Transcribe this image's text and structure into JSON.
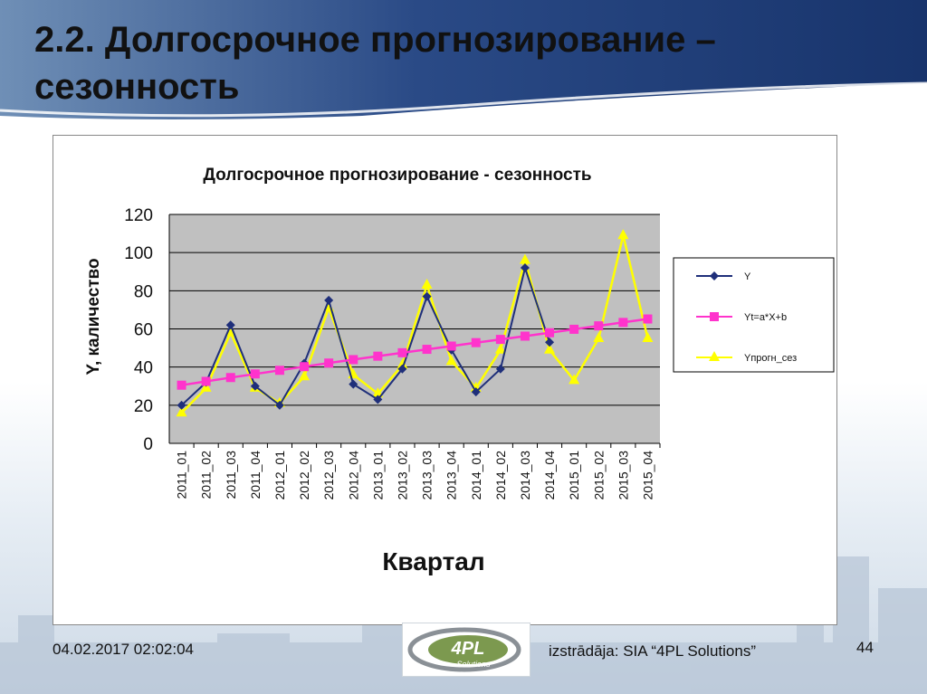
{
  "slide": {
    "title": "2.2. Долгосрочное прогнозирование – сезонность",
    "footer_date": "04.02.2017 02:02:04",
    "footer_credit": "izstrādāja: SIA “4PL Solutions”",
    "page_number": "44",
    "logo_text": "4PL",
    "logo_subtext": "Solutions"
  },
  "colors": {
    "header_dark": "#1f3e78",
    "plot_bg": "#c0c0c0",
    "series_y": "#1f2f7a",
    "series_trend": "#ff33cc",
    "series_forecast": "#ffff00"
  },
  "chart_data": {
    "type": "line",
    "title": "Долгосрочное прогнозирование  - сезонность",
    "xlabel": "Квартал",
    "ylabel": "Y, каличество",
    "ylim": [
      0,
      120
    ],
    "yticks": [
      0,
      20,
      40,
      60,
      80,
      100,
      120
    ],
    "grid": true,
    "legend": "right",
    "categories": [
      "2011_01",
      "2011_02",
      "2011_03",
      "2011_04",
      "2012_01",
      "2012_02",
      "2012_03",
      "2012_04",
      "2013_01",
      "2013_02",
      "2013_03",
      "2013_04",
      "2014_01",
      "2014_02",
      "2014_03",
      "2014_04",
      "2015_01",
      "2015_02",
      "2015_03",
      "2015_04"
    ],
    "series": [
      {
        "name": "Y",
        "color": "#1f2f7a",
        "marker": "diamond",
        "values": [
          20,
          32,
          62,
          30,
          20,
          42,
          75,
          31,
          23,
          39,
          77,
          49,
          27,
          39,
          92,
          53,
          null,
          null,
          null,
          null
        ]
      },
      {
        "name": "Yt=a*X+b",
        "color": "#ff33cc",
        "marker": "square",
        "values": [
          30.5,
          32.5,
          34.5,
          36.4,
          38.3,
          40.2,
          42.1,
          43.9,
          45.7,
          47.5,
          49.3,
          51.0,
          52.8,
          54.5,
          56.2,
          58.0,
          59.8,
          61.6,
          63.4,
          65.2
        ]
      },
      {
        "name": "Yпрогн_сез",
        "color": "#ffff00",
        "marker": "triangle",
        "values": [
          16,
          29,
          58,
          29,
          21,
          35,
          71,
          36,
          26,
          41,
          83,
          43,
          29,
          49,
          96,
          49,
          33,
          55,
          109,
          55
        ]
      }
    ]
  }
}
